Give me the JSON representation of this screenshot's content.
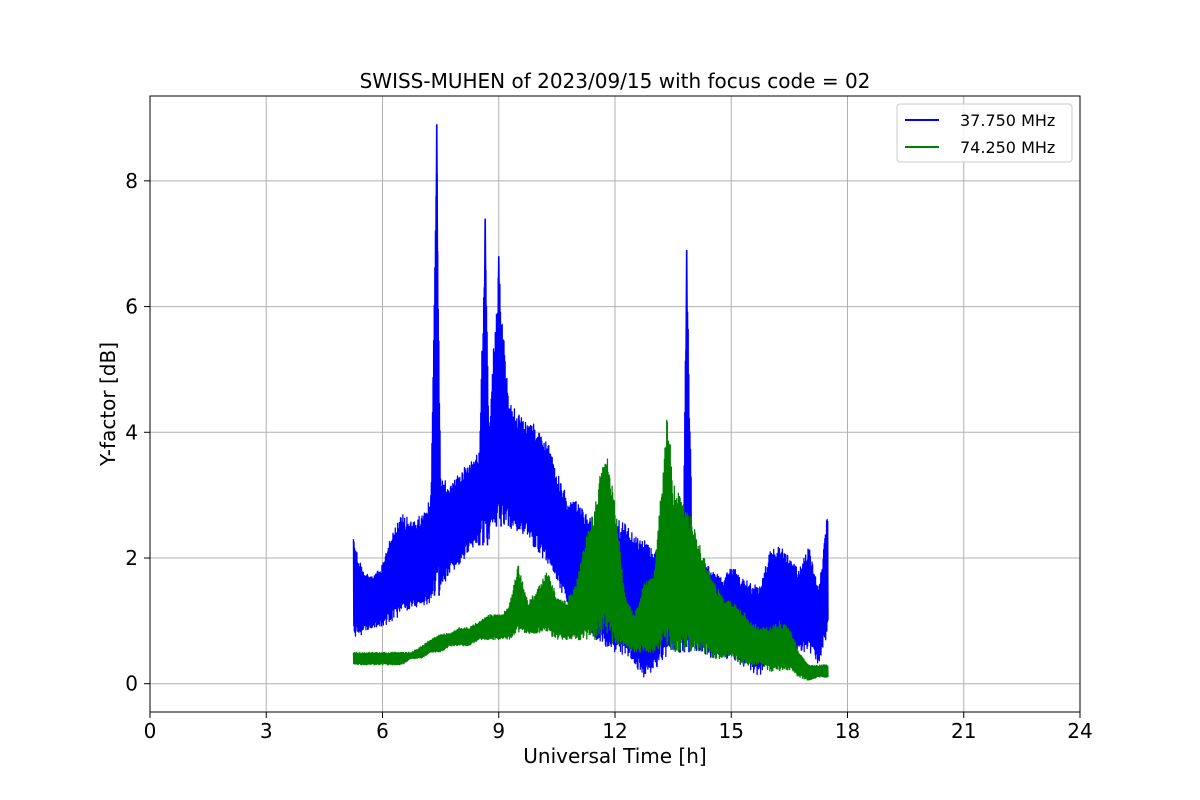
{
  "chart_data": {
    "type": "line",
    "title": "SWISS-MUHEN of 2023/09/15 with focus code = 02",
    "xlabel": "Universal Time [h]",
    "ylabel": "Y-factor [dB]",
    "xlim": [
      0,
      24
    ],
    "ylim": [
      -0.45,
      9.35
    ],
    "xticks": [
      0,
      3,
      6,
      9,
      12,
      15,
      18,
      21,
      24
    ],
    "yticks": [
      0,
      2,
      4,
      6,
      8
    ],
    "grid": true,
    "legend_position": "top-right",
    "series": [
      {
        "name": "37.750 MHz",
        "color": "#0000ff",
        "x": [
          5.25,
          5.5,
          5.75,
          6.0,
          6.25,
          6.5,
          6.75,
          7.0,
          7.25,
          7.4,
          7.5,
          7.75,
          8.0,
          8.25,
          8.5,
          8.65,
          8.75,
          9.0,
          9.25,
          9.5,
          9.75,
          10.0,
          10.25,
          10.5,
          10.75,
          11.0,
          11.25,
          11.5,
          11.75,
          12.0,
          12.25,
          12.5,
          12.75,
          13.0,
          13.25,
          13.5,
          13.75,
          13.85,
          14.0,
          14.25,
          14.5,
          14.75,
          15.0,
          15.25,
          15.5,
          15.75,
          16.0,
          16.25,
          16.5,
          16.75,
          17.0,
          17.25,
          17.5
        ],
        "upper": [
          2.3,
          1.8,
          1.7,
          1.9,
          2.4,
          2.7,
          2.6,
          2.7,
          3.0,
          8.9,
          3.3,
          3.2,
          3.4,
          3.5,
          3.7,
          7.4,
          4.1,
          6.8,
          4.5,
          4.3,
          4.2,
          4.1,
          3.9,
          3.4,
          3.0,
          2.9,
          2.7,
          2.6,
          2.6,
          2.6,
          2.6,
          2.4,
          2.3,
          2.2,
          2.3,
          2.3,
          2.2,
          6.9,
          2.2,
          2.0,
          1.8,
          1.7,
          1.9,
          1.7,
          1.6,
          1.6,
          2.1,
          2.2,
          2.0,
          1.8,
          2.2,
          1.5,
          2.8
        ],
        "lower": [
          0.7,
          0.8,
          0.9,
          0.9,
          1.0,
          1.1,
          1.2,
          1.2,
          1.3,
          1.4,
          1.5,
          1.7,
          1.9,
          2.1,
          2.2,
          2.2,
          2.3,
          2.5,
          2.5,
          2.4,
          2.3,
          2.1,
          1.9,
          1.6,
          1.3,
          1.1,
          0.9,
          0.7,
          0.6,
          0.5,
          0.4,
          0.3,
          0.1,
          0.2,
          0.4,
          0.5,
          0.5,
          0.5,
          0.5,
          0.5,
          0.4,
          0.4,
          0.4,
          0.3,
          0.2,
          0.1,
          0.6,
          0.7,
          0.7,
          0.5,
          0.5,
          0.3,
          0.8
        ]
      },
      {
        "name": "74.250 MHz",
        "color": "#008000",
        "x": [
          5.25,
          5.5,
          5.75,
          6.0,
          6.25,
          6.5,
          6.75,
          7.0,
          7.25,
          7.5,
          7.75,
          8.0,
          8.25,
          8.5,
          8.75,
          9.0,
          9.25,
          9.5,
          9.75,
          10.0,
          10.25,
          10.5,
          10.75,
          11.0,
          11.25,
          11.5,
          11.75,
          12.0,
          12.25,
          12.5,
          12.75,
          13.0,
          13.25,
          13.35,
          13.5,
          13.75,
          14.0,
          14.25,
          14.5,
          14.75,
          15.0,
          15.25,
          15.5,
          15.75,
          16.0,
          16.25,
          16.5,
          16.75,
          17.0,
          17.25,
          17.5
        ],
        "upper": [
          0.5,
          0.5,
          0.5,
          0.5,
          0.5,
          0.5,
          0.5,
          0.6,
          0.7,
          0.8,
          0.8,
          0.9,
          0.9,
          1.0,
          1.1,
          1.1,
          1.2,
          1.9,
          1.3,
          1.5,
          1.8,
          1.4,
          1.3,
          1.6,
          2.3,
          2.9,
          3.8,
          2.9,
          1.4,
          1.1,
          1.6,
          1.7,
          3.5,
          4.4,
          3.2,
          2.9,
          2.6,
          2.1,
          1.7,
          1.4,
          1.3,
          1.2,
          1.0,
          0.9,
          0.9,
          1.0,
          0.9,
          0.5,
          0.3,
          0.3,
          0.3
        ],
        "lower": [
          0.3,
          0.3,
          0.3,
          0.3,
          0.3,
          0.3,
          0.4,
          0.4,
          0.5,
          0.5,
          0.6,
          0.6,
          0.6,
          0.7,
          0.7,
          0.7,
          0.7,
          0.8,
          0.8,
          0.8,
          0.8,
          0.7,
          0.7,
          0.7,
          0.7,
          0.7,
          0.8,
          0.6,
          0.6,
          0.5,
          0.5,
          0.5,
          0.6,
          0.6,
          0.5,
          0.5,
          0.5,
          0.5,
          0.4,
          0.4,
          0.4,
          0.3,
          0.3,
          0.3,
          0.2,
          0.2,
          0.2,
          0.1,
          0.05,
          0.1,
          0.1
        ]
      }
    ]
  }
}
